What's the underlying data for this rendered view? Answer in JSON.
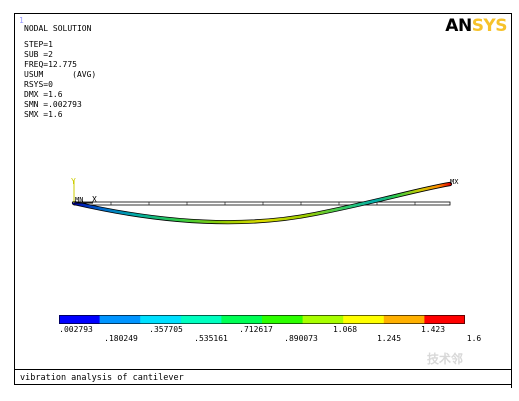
{
  "window": {
    "number": "1"
  },
  "logo": {
    "an": "AN",
    "sys": "SYS"
  },
  "info": {
    "heading": "NODAL SOLUTION",
    "lines": [
      "STEP=1",
      "SUB =2",
      "FREQ=12.775",
      "USUM      (AVG)",
      "RSYS=0",
      "DMX =1.6",
      "SMN =.002793",
      "SMX =1.6"
    ]
  },
  "markers": {
    "min": "MN",
    "max": "MX",
    "y_axis": "Y",
    "x_axis": "X"
  },
  "legend": {
    "colors": [
      "#0000ff",
      "#0094ff",
      "#00e0ff",
      "#00ffc0",
      "#00ff55",
      "#2dff00",
      "#a8ff00",
      "#ffff00",
      "#ffb000",
      "#ff0000"
    ],
    "top_labels": [
      ".002793",
      ".357705",
      ".712617",
      "1.068",
      "1.423"
    ],
    "bottom_labels": [
      ".180249",
      ".535161",
      ".890073",
      "1.245",
      "1.6"
    ]
  },
  "title": "vibration analysis of cantilever",
  "watermark": "技术邻"
}
